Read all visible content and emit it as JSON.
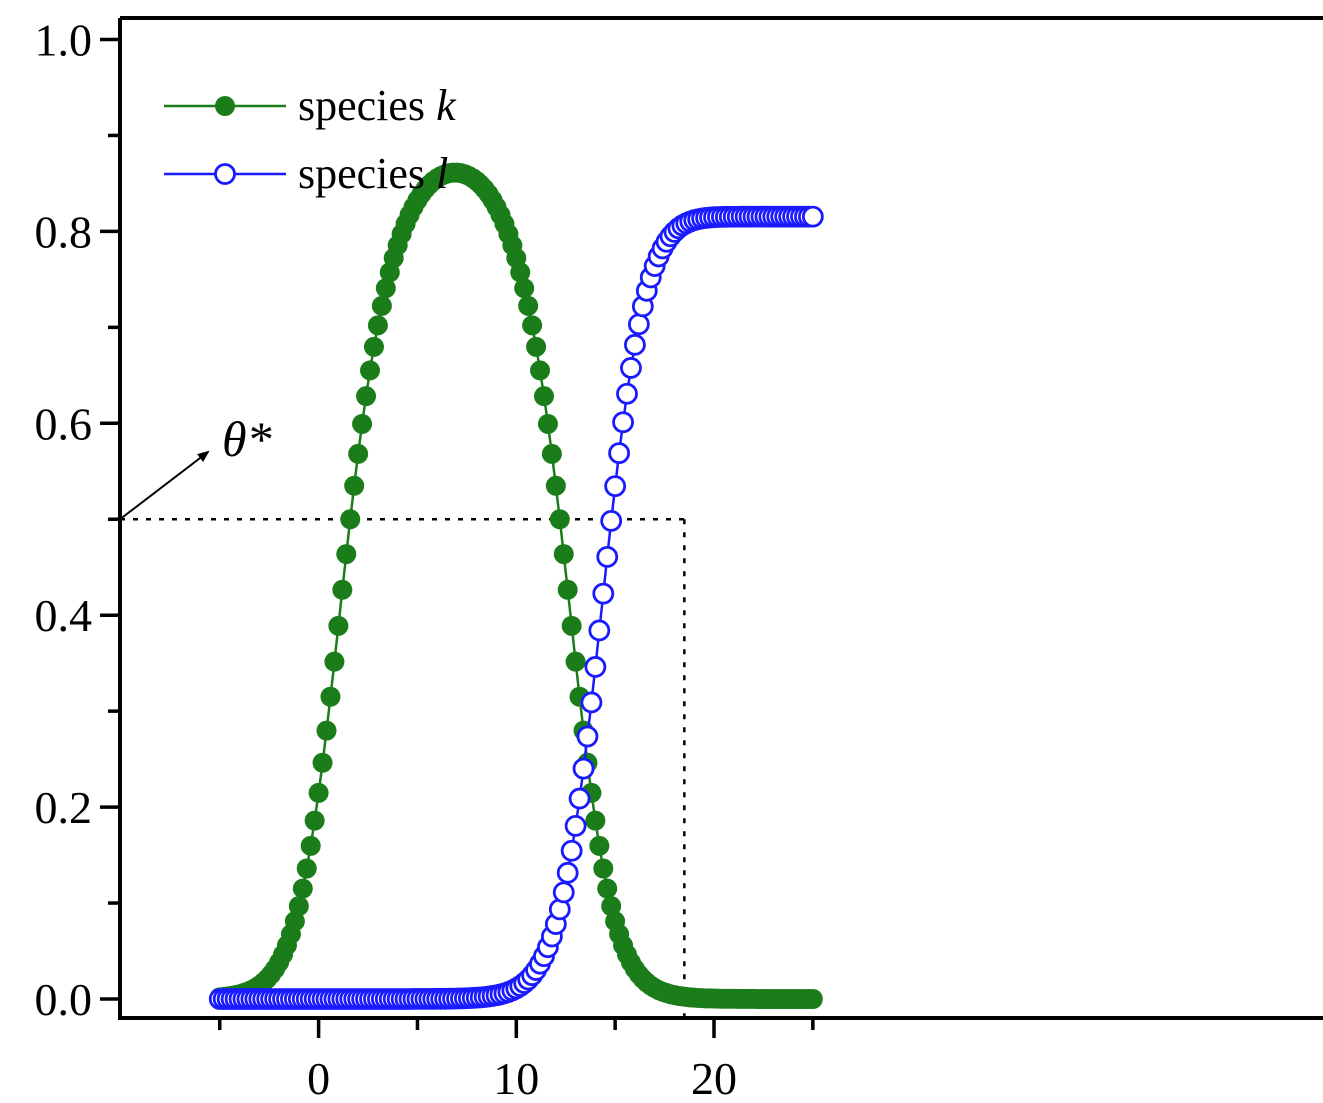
{
  "chart_data": {
    "type": "scatter",
    "xlim": [
      -5,
      25
    ],
    "ylim": [
      0,
      1.0
    ],
    "x_ticks": [
      "0",
      "10",
      "20"
    ],
    "y_ticks": [
      "0.0",
      "0.2",
      "0.4",
      "0.6",
      "0.8",
      "1.0"
    ],
    "legend_position": "top-left",
    "grid": false,
    "x": [
      -5.0,
      -4.8,
      -4.6,
      -4.4,
      -4.2,
      -4.0,
      -3.8,
      -3.6,
      -3.4,
      -3.2,
      -3.0,
      -2.8,
      -2.6,
      -2.4,
      -2.2,
      -2.0,
      -1.8,
      -1.6,
      -1.4,
      -1.2,
      -1.0,
      -0.8,
      -0.6,
      -0.4,
      -0.2,
      0.0,
      0.2,
      0.4,
      0.6,
      0.8,
      1.0,
      1.2,
      1.4,
      1.6,
      1.8,
      2.0,
      2.2,
      2.4,
      2.6,
      2.8,
      3.0,
      3.2,
      3.4,
      3.6,
      3.8,
      4.0,
      4.2,
      4.4,
      4.6,
      4.8,
      5.0,
      5.2,
      5.4,
      5.6,
      5.8,
      6.0,
      6.2,
      6.4,
      6.6,
      6.8,
      7.0,
      7.2,
      7.4,
      7.6,
      7.8,
      8.0,
      8.2,
      8.4,
      8.6,
      8.8,
      9.0,
      9.2,
      9.4,
      9.6,
      9.8,
      10.0,
      10.2,
      10.4,
      10.6,
      10.8,
      11.0,
      11.2,
      11.4,
      11.6,
      11.8,
      12.0,
      12.2,
      12.4,
      12.6,
      12.8,
      13.0,
      13.2,
      13.4,
      13.6,
      13.8,
      14.0,
      14.2,
      14.4,
      14.6,
      14.8,
      15.0,
      15.2,
      15.4,
      15.6,
      15.8,
      16.0,
      16.2,
      16.4,
      16.6,
      16.8,
      17.0,
      17.2,
      17.4,
      17.6,
      17.8,
      18.0,
      18.2,
      18.4,
      18.6,
      18.8,
      19.0,
      19.2,
      19.4,
      19.6,
      19.8,
      20.0,
      20.2,
      20.4,
      20.6,
      20.8,
      21.0,
      21.2,
      21.4,
      21.6,
      21.8,
      22.0,
      22.2,
      22.4,
      22.6,
      22.8,
      23.0,
      23.2,
      23.4,
      23.6,
      23.8,
      24.0,
      24.2,
      24.4,
      24.6,
      24.8,
      25.0
    ],
    "series": [
      {
        "name": "species k",
        "color": "#1a7d1a",
        "marker": "filled-circle",
        "values": [
          0.0017,
          0.0022,
          0.0027,
          0.0033,
          0.0041,
          0.005,
          0.0062,
          0.0076,
          0.0093,
          0.0114,
          0.014,
          0.0172,
          0.021,
          0.0257,
          0.0313,
          0.0381,
          0.0463,
          0.056,
          0.0675,
          0.081,
          0.0968,
          0.1151,
          0.136,
          0.1596,
          0.1859,
          0.2148,
          0.2462,
          0.2797,
          0.315,
          0.3516,
          0.3889,
          0.4265,
          0.4637,
          0.5,
          0.5349,
          0.5681,
          0.5993,
          0.6283,
          0.6551,
          0.6797,
          0.7021,
          0.7224,
          0.7408,
          0.7573,
          0.7722,
          0.7855,
          0.7973,
          0.8079,
          0.8172,
          0.8254,
          0.8326,
          0.8388,
          0.8441,
          0.8486,
          0.8524,
          0.8554,
          0.8578,
          0.8596,
          0.8607,
          0.8613,
          0.8613,
          0.8607,
          0.8596,
          0.8578,
          0.8554,
          0.8524,
          0.8486,
          0.8441,
          0.8388,
          0.8326,
          0.8254,
          0.8172,
          0.8079,
          0.7973,
          0.7855,
          0.7722,
          0.7573,
          0.7408,
          0.7224,
          0.7021,
          0.6797,
          0.6551,
          0.6283,
          0.5993,
          0.5681,
          0.5349,
          0.5,
          0.4637,
          0.4265,
          0.3889,
          0.3516,
          0.315,
          0.2797,
          0.2462,
          0.2148,
          0.1859,
          0.1596,
          0.136,
          0.1151,
          0.0968,
          0.081,
          0.0675,
          0.056,
          0.0463,
          0.0381,
          0.0313,
          0.0257,
          0.021,
          0.0172,
          0.014,
          0.0114,
          0.0093,
          0.0076,
          0.0062,
          0.005,
          0.0041,
          0.0033,
          0.0027,
          0.0022,
          0.0017,
          0.0014,
          0.0011,
          0.0009,
          0.0007,
          0.0006,
          0.0005,
          0.0004,
          0.0003,
          0.0003,
          0.0002,
          0.0002,
          0.0001,
          0.0001,
          0.0001,
          0.0001,
          0.0001,
          0.0,
          0.0,
          0.0,
          0.0,
          0.0,
          0.0,
          0.0,
          0.0,
          0.0,
          0.0,
          0.0,
          0.0,
          0.0,
          0.0,
          0.0
        ]
      },
      {
        "name": "species l",
        "color": "#1a1aff",
        "marker": "open-circle",
        "values": [
          0.0,
          0.0,
          0.0,
          0.0,
          0.0,
          0.0,
          0.0,
          0.0,
          0.0,
          0.0,
          0.0,
          0.0,
          0.0,
          0.0,
          0.0,
          0.0,
          0.0,
          0.0,
          0.0,
          0.0,
          0.0,
          0.0,
          0.0,
          0.0,
          0.0,
          0.0,
          0.0,
          0.0,
          0.0,
          0.0,
          0.0,
          0.0,
          0.0,
          0.0,
          0.0,
          0.0,
          0.0,
          0.0,
          0.0,
          0.0,
          0.0,
          0.0,
          0.0,
          0.0,
          0.0,
          0.0,
          0.0,
          0.0,
          0.0,
          0.0001,
          0.0001,
          0.0001,
          0.0001,
          0.0001,
          0.0001,
          0.0002,
          0.0002,
          0.0002,
          0.0003,
          0.0004,
          0.0005,
          0.0006,
          0.0007,
          0.0009,
          0.0011,
          0.0014,
          0.0017,
          0.0021,
          0.0026,
          0.0032,
          0.0039,
          0.0048,
          0.0059,
          0.0073,
          0.009,
          0.011,
          0.0135,
          0.0166,
          0.0203,
          0.0248,
          0.0302,
          0.0368,
          0.0446,
          0.054,
          0.0651,
          0.0781,
          0.0934,
          0.1111,
          0.1315,
          0.1545,
          0.1804,
          0.2089,
          0.2401,
          0.2736,
          0.3091,
          0.3461,
          0.3841,
          0.4225,
          0.4608,
          0.4983,
          0.5345,
          0.5689,
          0.6011,
          0.6308,
          0.6577,
          0.6818,
          0.7032,
          0.7219,
          0.7381,
          0.752,
          0.7639,
          0.7739,
          0.7823,
          0.7892,
          0.7949,
          0.7995,
          0.8032,
          0.8062,
          0.8085,
          0.8103,
          0.8117,
          0.8127,
          0.8135,
          0.8141,
          0.8145,
          0.8148,
          0.815,
          0.8151,
          0.8152,
          0.8153,
          0.8153,
          0.8153,
          0.8154,
          0.8154,
          0.8154,
          0.8154,
          0.8154,
          0.8154,
          0.8154,
          0.8154,
          0.8154,
          0.8154,
          0.8154,
          0.8154,
          0.8154,
          0.8154,
          0.8154,
          0.8154,
          0.8154,
          0.8154,
          0.8154
        ]
      }
    ],
    "reference_lines": {
      "y": 0.5,
      "x": 18.5
    },
    "annotation": {
      "text": "θ*",
      "points_to": "y=0.5 on the left axis"
    },
    "legend": [
      {
        "prefix": "species ",
        "var": "k"
      },
      {
        "prefix": "species ",
        "var": "l"
      }
    ]
  }
}
